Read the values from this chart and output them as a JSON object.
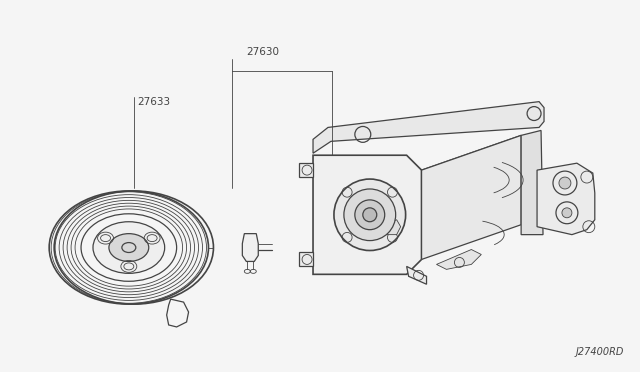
{
  "background_color": "#f5f5f5",
  "line_color": "#444444",
  "label_27630": "27630",
  "label_27633": "27633",
  "ref_number": "J27400RD",
  "fig_width": 6.4,
  "fig_height": 3.72,
  "dpi": 100,
  "lw_main": 0.9,
  "lw_thin": 0.6,
  "lw_thick": 1.2
}
